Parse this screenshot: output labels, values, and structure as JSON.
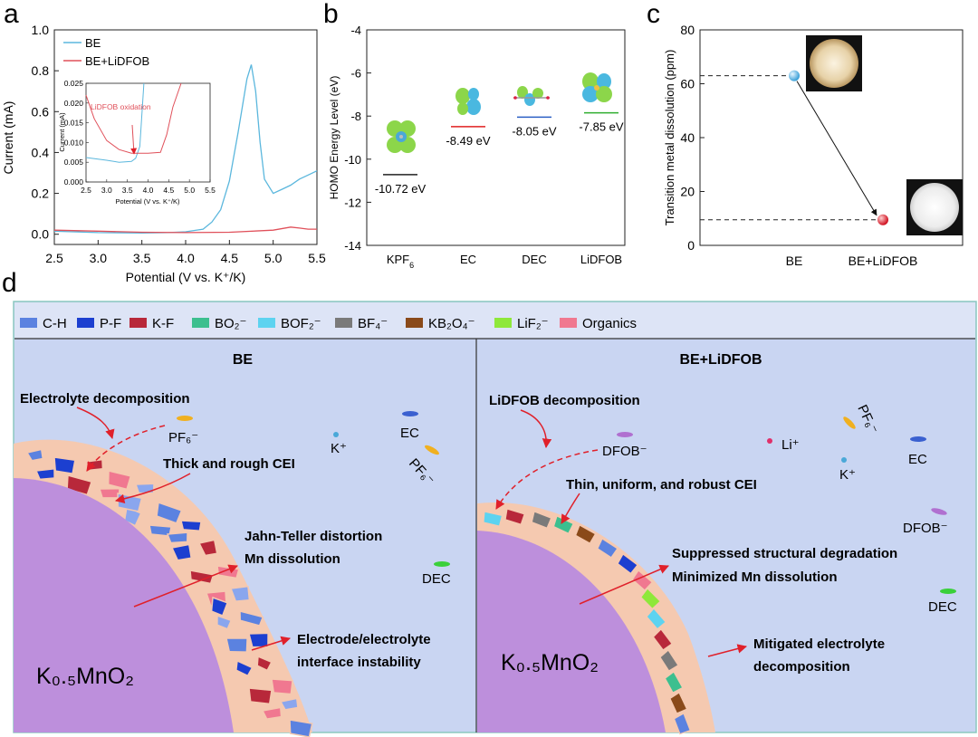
{
  "panel_letters": [
    "a",
    "b",
    "c",
    "d"
  ],
  "colors": {
    "be": "#5bb7dd",
    "lidfob": "#e0505a",
    "bg_d": "#c9d5f2",
    "cathode": "#bd8fdc",
    "cei_fill": "#f5c9b0",
    "arrow": "#e0202a"
  },
  "chart_data": [
    {
      "id": "a",
      "type": "line",
      "xlabel": "Potential (V vs. K⁺/K)",
      "ylabel": "Current (mA)",
      "xlim": [
        2.5,
        5.5
      ],
      "ylim": [
        -0.05,
        1.0
      ],
      "xticks": [
        2.5,
        3.0,
        3.5,
        4.0,
        4.5,
        5.0,
        5.5
      ],
      "yticks": [
        0.0,
        0.2,
        0.4,
        0.6,
        0.8,
        1.0
      ],
      "series": [
        {
          "name": "BE",
          "color": "#5bb7dd",
          "x": [
            2.5,
            3.0,
            3.5,
            3.8,
            4.0,
            4.2,
            4.3,
            4.4,
            4.5,
            4.6,
            4.7,
            4.75,
            4.8,
            4.85,
            4.9,
            5.0,
            5.1,
            5.2,
            5.3,
            5.4,
            5.5
          ],
          "y": [
            0.015,
            0.008,
            0.006,
            0.008,
            0.012,
            0.025,
            0.06,
            0.12,
            0.26,
            0.5,
            0.76,
            0.83,
            0.7,
            0.45,
            0.27,
            0.2,
            0.22,
            0.24,
            0.27,
            0.29,
            0.31
          ]
        },
        {
          "name": "BE+LiDFOB",
          "color": "#e0505a",
          "x": [
            2.5,
            3.0,
            3.5,
            4.0,
            4.5,
            5.0,
            5.2,
            5.3,
            5.4,
            5.5
          ],
          "y": [
            0.02,
            0.015,
            0.01,
            0.008,
            0.01,
            0.02,
            0.035,
            0.03,
            0.025,
            0.025
          ]
        }
      ],
      "inset": {
        "xlabel": "Potential (V vs. K⁺/K)",
        "ylabel": "Current (mA)",
        "xlim": [
          2.5,
          5.5
        ],
        "ylim": [
          0.0,
          0.025
        ],
        "xticks": [
          2.5,
          3.0,
          3.5,
          4.0,
          4.5,
          5.0,
          5.5
        ],
        "yticks": [
          0.0,
          0.005,
          0.01,
          0.015,
          0.02,
          0.025
        ],
        "ytick_labels": [
          "0.000",
          "0.005",
          "0.010",
          "0.015",
          "0.020",
          "0.025"
        ],
        "annotation": "LiDFOB oxidation",
        "series": [
          {
            "name": "BE",
            "color": "#5bb7dd",
            "x": [
              2.5,
              3.0,
              3.3,
              3.6,
              3.7,
              3.8,
              3.9
            ],
            "y": [
              0.0062,
              0.0055,
              0.005,
              0.0052,
              0.006,
              0.009,
              0.025
            ]
          },
          {
            "name": "BE+LiDFOB",
            "color": "#e0505a",
            "x": [
              2.5,
              2.7,
              3.0,
              3.3,
              3.6,
              4.0,
              4.3,
              4.45,
              4.6,
              4.8
            ],
            "y": [
              0.022,
              0.016,
              0.0105,
              0.0082,
              0.0073,
              0.0073,
              0.0075,
              0.012,
              0.019,
              0.025
            ]
          }
        ]
      }
    },
    {
      "id": "b",
      "type": "scatter",
      "ylabel": "HOMO Energy Level (eV)",
      "ylim": [
        -14,
        -4
      ],
      "yticks": [
        -14,
        -12,
        -10,
        -8,
        -6,
        -4
      ],
      "categories": [
        "KPF",
        "EC",
        "DEC",
        "LiDFOB"
      ],
      "category_subscripts": [
        "6",
        "",
        "",
        ""
      ],
      "values": [
        -10.72,
        -8.49,
        -8.05,
        -7.85
      ],
      "value_labels": [
        "-10.72 eV",
        "-8.49 eV",
        "-8.05 eV",
        "-7.85 eV"
      ],
      "level_colors": [
        "#222222",
        "#e02020",
        "#2b5fc4",
        "#2fae2f"
      ]
    },
    {
      "id": "c",
      "type": "scatter",
      "ylabel": "Transition metal dissolution (ppm)",
      "ylim": [
        0,
        80
      ],
      "yticks": [
        0,
        20,
        40,
        60,
        80
      ],
      "categories": [
        "BE",
        "BE+LiDFOB"
      ],
      "values": [
        63,
        9.5
      ],
      "point_colors": [
        "#5bb7dd",
        "#e02030"
      ]
    }
  ],
  "panel_d": {
    "legend": [
      {
        "label": "C-H",
        "color": "#5b82e0"
      },
      {
        "label": "P-F",
        "color": "#1c3fd0"
      },
      {
        "label": "K-F",
        "color": "#b8283a"
      },
      {
        "label": "BO₂⁻",
        "color": "#3cbf8f"
      },
      {
        "label": "BOF₂⁻",
        "color": "#5dd3f0"
      },
      {
        "label": "BF₄⁻",
        "color": "#7a7a7a"
      },
      {
        "label": "KB₂O₄⁻",
        "color": "#8a4a1a"
      },
      {
        "label": "LiF₂⁻",
        "color": "#8ee83a"
      },
      {
        "label": "Organics",
        "color": "#f07890"
      }
    ],
    "left": {
      "title": "BE",
      "note_decomp": "Electrolyte decomposition",
      "note_cei": "Thick and rough CEI",
      "note_jt": "Jahn-Teller distortion",
      "note_mn": "Mn dissolution",
      "note_interface_1": "Electrode/electrolyte",
      "note_interface_2": "interface instability",
      "cathode": "K₀.₅MnO₂",
      "species": {
        "pf6_1": "PF₆⁻",
        "pf6_2": "PF₆⁻",
        "k": "K⁺",
        "ec": "EC",
        "dec": "DEC"
      }
    },
    "right": {
      "title": "BE+LiDFOB",
      "note_decomp": "LiDFOB decomposition",
      "note_cei": "Thin, uniform, and robust CEI",
      "note_supp": "Suppressed structural degradation",
      "note_min": "Minimized Mn dissolution",
      "note_mit_1": "Mitigated electrolyte",
      "note_mit_2": "decomposition",
      "cathode": "K₀.₅MnO₂",
      "species": {
        "dfob_1": "DFOB⁻",
        "dfob_2": "DFOB⁻",
        "li": "Li⁺",
        "pf6": "PF₆⁻",
        "k": "K⁺",
        "ec": "EC",
        "dec": "DEC"
      }
    }
  }
}
